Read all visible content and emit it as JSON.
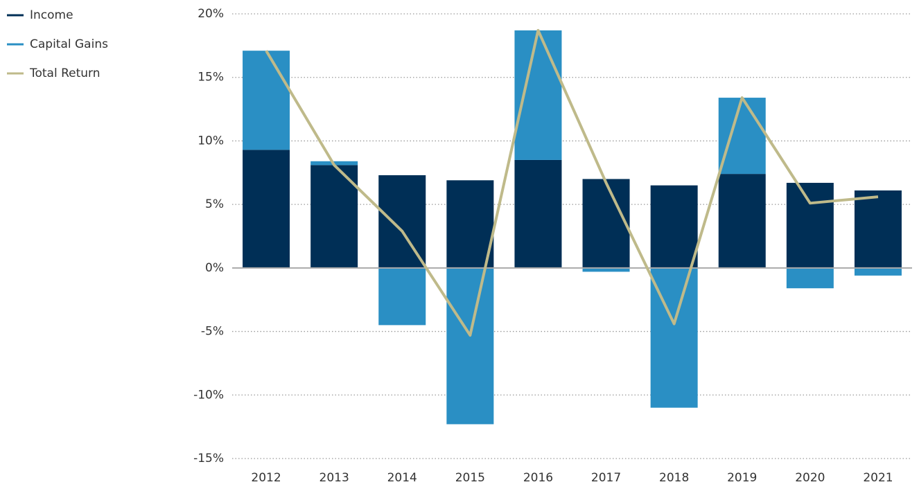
{
  "chart_data": {
    "type": "bar",
    "categories": [
      "2012",
      "2013",
      "2014",
      "2015",
      "2016",
      "2017",
      "2018",
      "2019",
      "2020",
      "2021"
    ],
    "series": [
      {
        "name": "Income",
        "color": "#002f56",
        "values": [
          9.3,
          8.1,
          7.3,
          6.9,
          8.5,
          7.0,
          6.5,
          7.4,
          6.7,
          6.1
        ]
      },
      {
        "name": "Capital Gains",
        "color": "#2a8fc4",
        "values": [
          7.8,
          0.3,
          -4.5,
          -12.3,
          10.2,
          -0.3,
          -11.0,
          6.0,
          -1.6,
          -0.6
        ]
      },
      {
        "name": "Total Return",
        "color": "#bfba8a",
        "type": "line",
        "values": [
          17.1,
          8.1,
          2.9,
          -5.3,
          18.7,
          6.7,
          -4.4,
          13.4,
          5.1,
          5.6
        ]
      }
    ],
    "ylim": [
      -15,
      20
    ],
    "yticks": [
      {
        "value": -15,
        "label": "-15%"
      },
      {
        "value": -10,
        "label": "-10%"
      },
      {
        "value": -5,
        "label": "-5%"
      },
      {
        "value": 0,
        "label": "0%"
      },
      {
        "value": 5,
        "label": "5%"
      },
      {
        "value": 10,
        "label": "10%"
      },
      {
        "value": 15,
        "label": "15%"
      },
      {
        "value": 20,
        "label": "20%"
      }
    ],
    "grid": true,
    "legend": "top-left"
  }
}
